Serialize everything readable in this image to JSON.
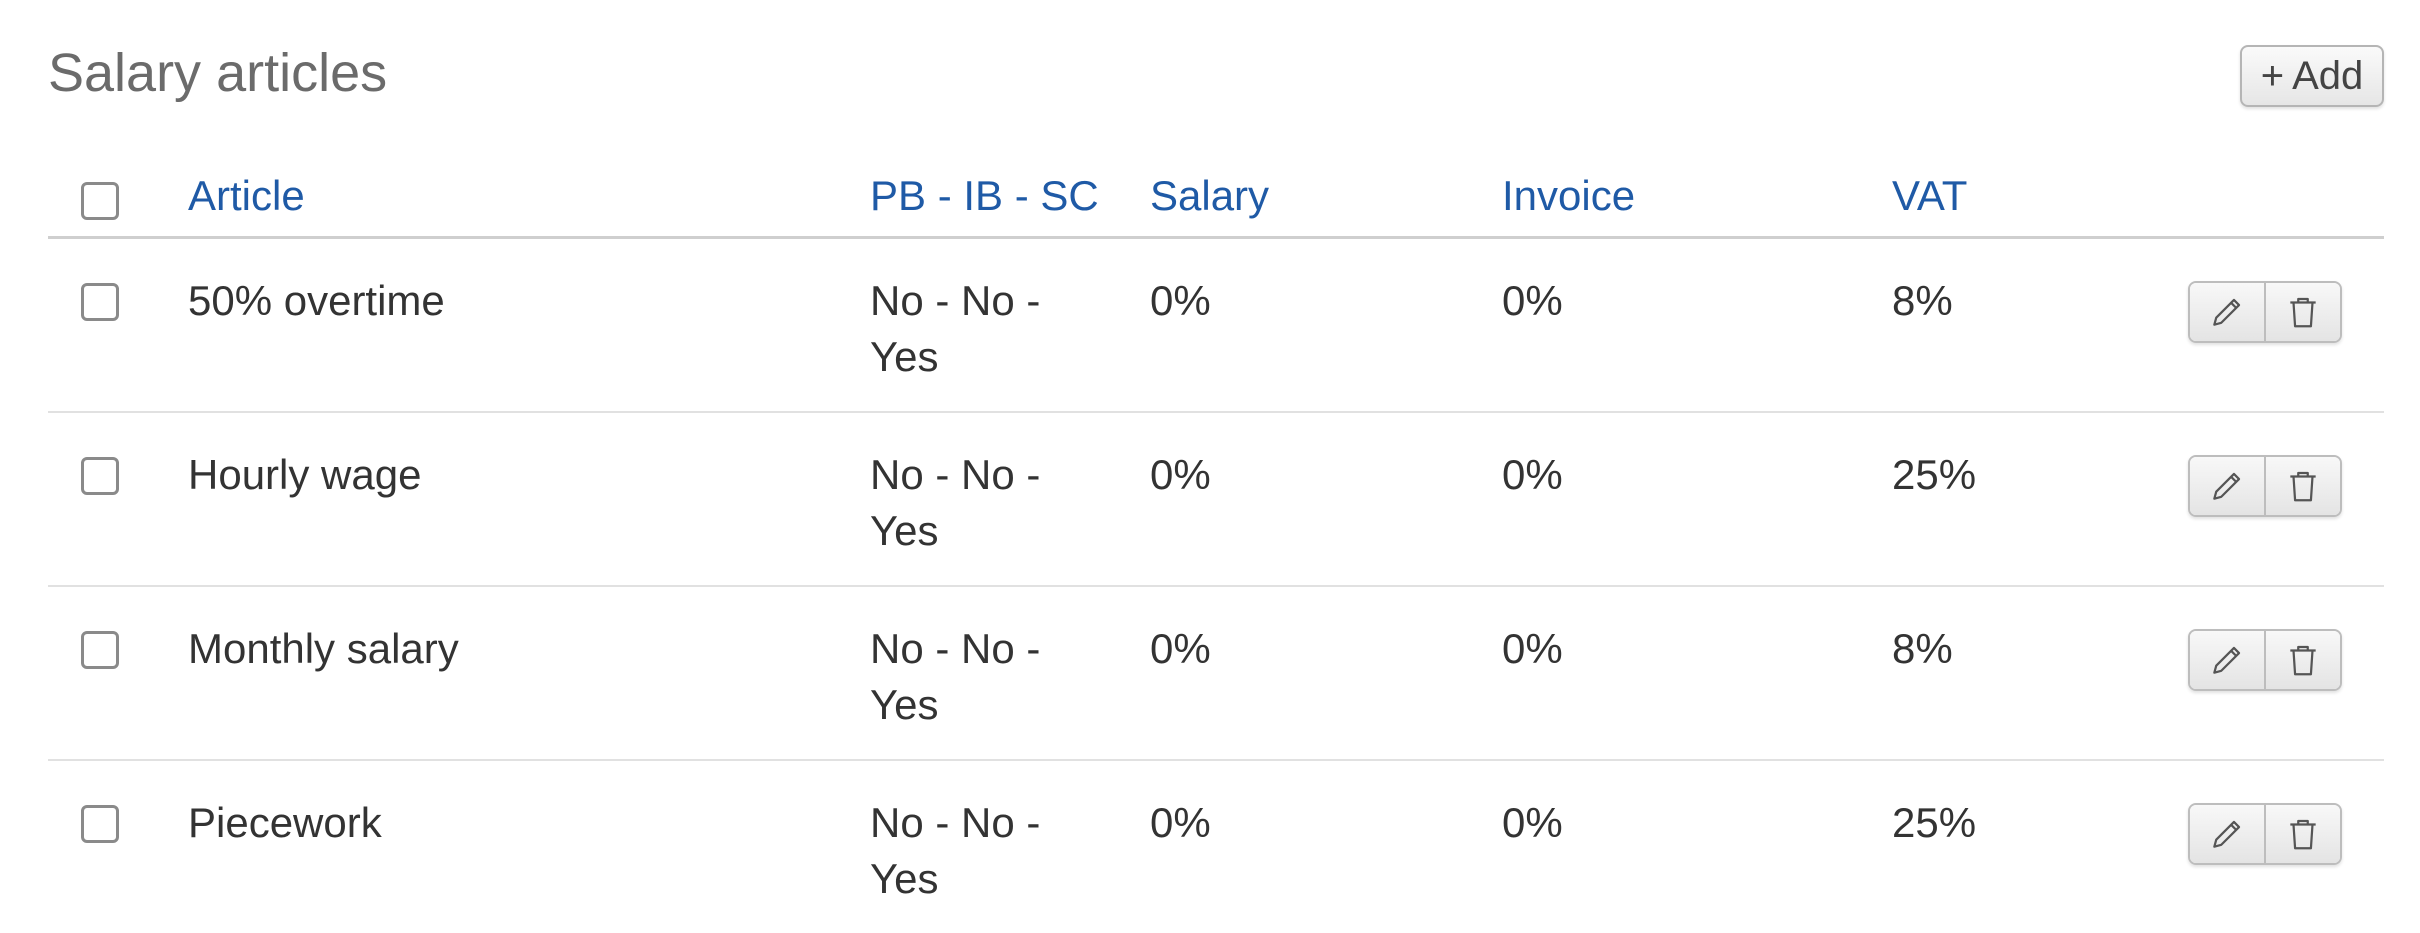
{
  "header": {
    "title": "Salary articles",
    "add_label": "Add",
    "add_icon": "+"
  },
  "table": {
    "columns": {
      "article": "Article",
      "flags": "PB - IB - SC",
      "salary": "Salary",
      "invoice": "Invoice",
      "vat": "VAT"
    },
    "rows": [
      {
        "article": "50% overtime",
        "flags": "No - No - Yes",
        "salary": "0%",
        "invoice": "0%",
        "vat": "8%"
      },
      {
        "article": "Hourly wage",
        "flags": "No - No - Yes",
        "salary": "0%",
        "invoice": "0%",
        "vat": "25%"
      },
      {
        "article": "Monthly salary",
        "flags": "No - No - Yes",
        "salary": "0%",
        "invoice": "0%",
        "vat": "8%"
      },
      {
        "article": "Piecework",
        "flags": "No - No - Yes",
        "salary": "0%",
        "invoice": "0%",
        "vat": "25%"
      }
    ]
  },
  "icons": {
    "edit": "pencil-icon",
    "delete": "trash-icon"
  },
  "colors": {
    "header_text": "#1f5aa6",
    "title_text": "#6b6b6b",
    "body_text": "#333333"
  }
}
